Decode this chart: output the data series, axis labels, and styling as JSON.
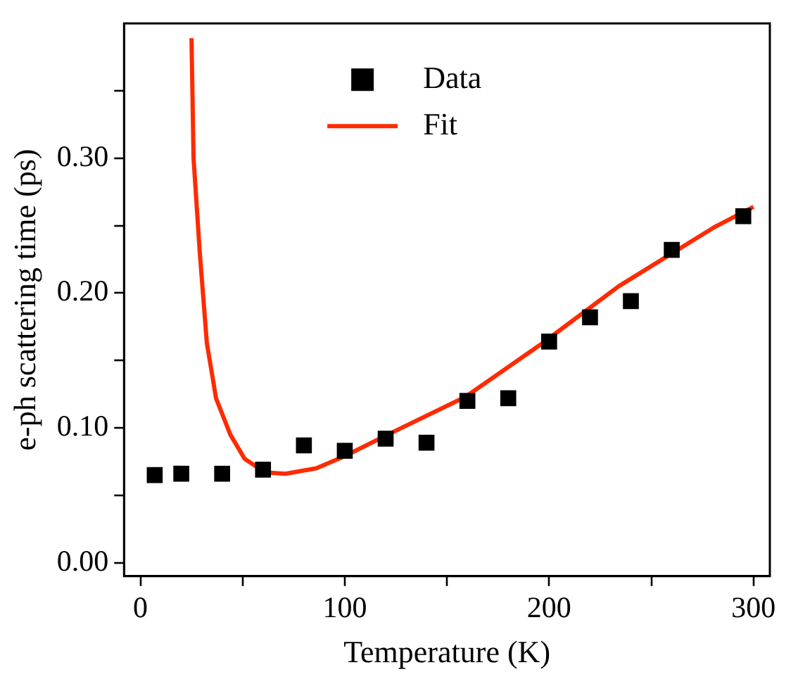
{
  "chart_data": {
    "type": "scatter",
    "xlabel": "Temperature (K)",
    "ylabel": "e-ph scattering time (ps)",
    "xlim": [
      -8,
      308
    ],
    "ylim": [
      -0.01,
      0.4
    ],
    "xticks": [
      0,
      {
        "value": 50,
        "label": null
      },
      100,
      {
        "value": 150,
        "label": null
      },
      200,
      {
        "value": 250,
        "label": null
      },
      300
    ],
    "yticks": [
      {
        "value": 0,
        "label": "0.00"
      },
      {
        "value": 0.05,
        "label": null
      },
      {
        "value": 0.1,
        "label": "0.10"
      },
      {
        "value": 0.15,
        "label": null
      },
      {
        "value": 0.2,
        "label": "0.20"
      },
      {
        "value": 0.25,
        "label": null
      },
      {
        "value": 0.3,
        "label": "0.30"
      },
      {
        "value": 0.35,
        "label": null
      }
    ],
    "grid": false,
    "legend": "top",
    "marker": "square",
    "series": [
      {
        "name": "Data",
        "color": "#000000",
        "x": [
          7,
          20,
          40,
          60,
          80,
          100,
          120,
          140,
          160,
          180,
          200,
          220,
          240,
          260,
          295
        ],
        "values": [
          0.065,
          0.066,
          0.066,
          0.069,
          0.087,
          0.083,
          0.092,
          0.089,
          0.12,
          0.122,
          0.164,
          0.182,
          0.194,
          0.232,
          0.257
        ]
      },
      {
        "name": "Fit",
        "type": "line",
        "color": "#ff2a00",
        "line_style": "solid",
        "marker": "none",
        "x": [
          25,
          26,
          29,
          32.5,
          37,
          44,
          51,
          61,
          71,
          86,
          100,
          121,
          159,
          196,
          234,
          281,
          300
        ],
        "values": [
          0.389,
          0.3,
          0.231,
          0.163,
          0.122,
          0.095,
          0.077,
          0.067,
          0.066,
          0.07,
          0.079,
          0.095,
          0.123,
          0.162,
          0.205,
          0.249,
          0.264
        ]
      }
    ]
  }
}
